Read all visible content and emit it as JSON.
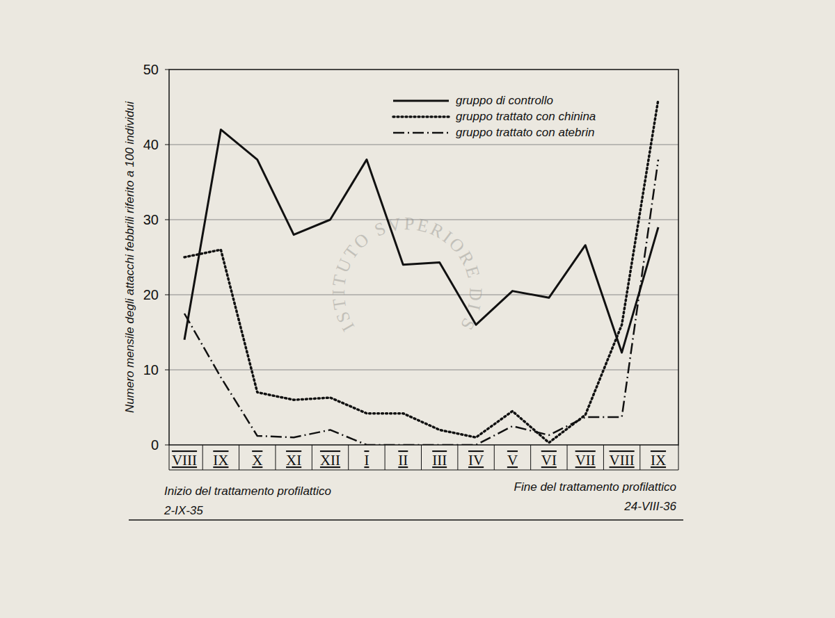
{
  "chart_data": {
    "type": "line",
    "y_label": "Numero mensile degli attacchi febbrili riferito a 100 individui",
    "categories": [
      "VIII",
      "IX",
      "X",
      "XI",
      "XII",
      "I",
      "II",
      "III",
      "IV",
      "V",
      "VI",
      "VII",
      "VIII",
      "IX"
    ],
    "series": [
      {
        "name": "gruppo di controllo",
        "color": "#111111",
        "line_style": "solid",
        "values": [
          14,
          42,
          38,
          28,
          30,
          38,
          24,
          24.3,
          16,
          20.5,
          19.6,
          26.6,
          12.3,
          29
        ]
      },
      {
        "name": "gruppo trattato con chinina",
        "color": "#111111",
        "line_style": "dotted",
        "values": [
          25,
          26,
          7,
          6,
          6.3,
          4.2,
          4.2,
          2,
          1,
          4.5,
          0.3,
          4,
          16,
          46
        ]
      },
      {
        "name": "gruppo trattato con atebrin",
        "color": "#111111",
        "line_style": "dashdot",
        "values": [
          17.5,
          9,
          1.2,
          1,
          2,
          0,
          0,
          0,
          0,
          2.5,
          1.3,
          3.7,
          3.7,
          38
        ]
      }
    ],
    "ylim": [
      0,
      50
    ],
    "yticks": [
      0,
      10,
      20,
      30,
      40,
      50
    ],
    "grid": true,
    "legend": "top-right",
    "annotations": [
      "Inizio del trattamento profilattico",
      "2-IX-35",
      "Fine del trattamento profilattico",
      "24-VIII-36",
      "ISTITUTO SVPERIORE DI SANITÀ"
    ]
  }
}
